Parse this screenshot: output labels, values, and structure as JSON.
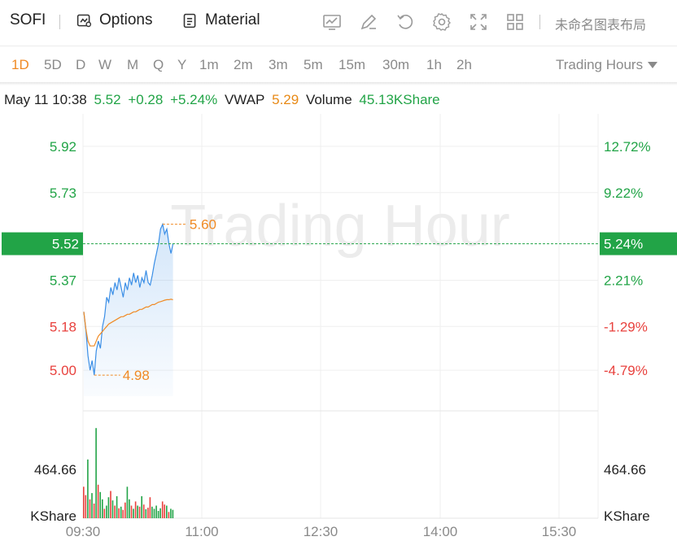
{
  "toolbar": {
    "symbol": "SOFI",
    "options_label": "Options",
    "material_label": "Material",
    "layout_name": "未命名图表布局",
    "icons": [
      "chart-line-icon",
      "pencil-icon",
      "reset-icon",
      "settings-icon",
      "fullscreen-icon",
      "grid-layout-icon"
    ]
  },
  "periods": {
    "items": [
      "1D",
      "5D",
      "D",
      "W",
      "M",
      "Q",
      "Y",
      "1m",
      "2m",
      "3m",
      "5m",
      "15m",
      "30m",
      "1h",
      "2h"
    ],
    "active": "1D",
    "session_label": "Trading Hours"
  },
  "info": {
    "datetime": "May 11 10:38",
    "price": "5.52",
    "change": "+0.28",
    "change_pct": "+5.24%",
    "vwap_label": "VWAP",
    "vwap_value": "5.29",
    "volume_label": "Volume",
    "volume_value": "45.13KShare"
  },
  "chart": {
    "watermark": "Trading Hour",
    "price_ticks": [
      "5.92",
      "5.73",
      "5.37",
      "5.18",
      "5.00"
    ],
    "pct_ticks": [
      "12.72%",
      "9.22%",
      "2.21%",
      "-1.29%",
      "-4.79%"
    ],
    "current_price_label": "5.52",
    "current_pct_label": "5.24%",
    "high_label": "5.60",
    "low_label": "4.98",
    "volume_tick": "464.66",
    "volume_unit": "KShare",
    "time_ticks": [
      "09:30",
      "11:00",
      "12:30",
      "14:00",
      "15:30"
    ],
    "colors": {
      "up": "#22a447",
      "down": "#e8413d",
      "price_line": "#3a8ee6",
      "vwap_line": "#f08a24",
      "grid": "#efefef"
    }
  },
  "chart_data": {
    "type": "line",
    "series": [
      {
        "name": "Price",
        "values": [
          5.24,
          5.17,
          5.06,
          5.0,
          5.04,
          4.98,
          5.08,
          5.12,
          5.09,
          5.18,
          5.22,
          5.3,
          5.28,
          5.34,
          5.31,
          5.36,
          5.33,
          5.38,
          5.34,
          5.3,
          5.36,
          5.33,
          5.38,
          5.35,
          5.4,
          5.36,
          5.39,
          5.34,
          5.38,
          5.36,
          5.41,
          5.36,
          5.35,
          5.39,
          5.44,
          5.48,
          5.52,
          5.58,
          5.6,
          5.56,
          5.58,
          5.52,
          5.48,
          5.52
        ]
      },
      {
        "name": "VWAP",
        "values": [
          5.24,
          5.17,
          5.12,
          5.1,
          5.1,
          5.1,
          5.12,
          5.14,
          5.15,
          5.16,
          5.17,
          5.18,
          5.19,
          5.195,
          5.2,
          5.205,
          5.21,
          5.215,
          5.22,
          5.22,
          5.225,
          5.23,
          5.23,
          5.235,
          5.24,
          5.24,
          5.245,
          5.25,
          5.25,
          5.255,
          5.26,
          5.26,
          5.265,
          5.27,
          5.27,
          5.275,
          5.28,
          5.282,
          5.285,
          5.288,
          5.29,
          5.29,
          5.292,
          5.29
        ]
      }
    ],
    "volume": [
      300,
      220,
      560,
      180,
      240,
      140,
      860,
      320,
      250,
      180,
      90,
      120,
      200,
      260,
      170,
      120,
      210,
      95,
      110,
      80,
      150,
      300,
      180,
      120,
      90,
      160,
      120,
      110,
      210,
      130,
      85,
      100,
      200,
      110,
      90,
      120,
      70,
      95,
      160,
      130,
      120,
      60,
      90,
      80
    ],
    "volume_up": [
      0,
      0,
      1,
      0,
      1,
      0,
      1,
      0,
      1,
      1,
      0,
      1,
      1,
      0,
      1,
      0,
      1,
      0,
      1,
      0,
      0,
      1,
      1,
      0,
      1,
      0,
      1,
      0,
      1,
      0,
      1,
      0,
      0,
      1,
      1,
      1,
      1,
      1,
      0,
      0,
      1,
      0,
      1,
      1
    ],
    "ylim": [
      4.86,
      6.0
    ],
    "xlabel": "",
    "ylabel": ""
  }
}
